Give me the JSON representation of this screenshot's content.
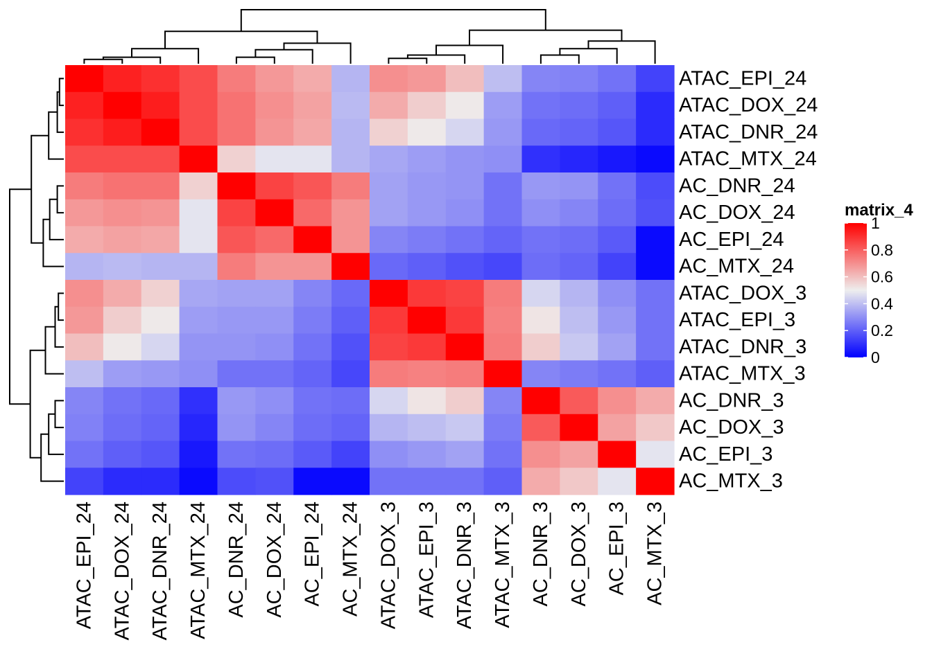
{
  "chart_data": {
    "type": "heatmap",
    "title": "",
    "xlabel": "",
    "ylabel": "",
    "rows": [
      "ATAC_EPI_24",
      "ATAC_DOX_24",
      "ATAC_DNR_24",
      "ATAC_MTX_24",
      "AC_DNR_24",
      "AC_DOX_24",
      "AC_EPI_24",
      "AC_MTX_24",
      "ATAC_DOX_3",
      "ATAC_EPI_3",
      "ATAC_DNR_3",
      "ATAC_MTX_3",
      "AC_DNR_3",
      "AC_DOX_3",
      "AC_EPI_3",
      "AC_MTX_3"
    ],
    "columns": [
      "ATAC_EPI_24",
      "ATAC_DOX_24",
      "ATAC_DNR_24",
      "ATAC_MTX_24",
      "AC_DNR_24",
      "AC_DOX_24",
      "AC_EPI_24",
      "AC_MTX_24",
      "ATAC_DOX_3",
      "ATAC_EPI_3",
      "ATAC_DNR_3",
      "ATAC_MTX_3",
      "AC_DNR_3",
      "AC_DOX_3",
      "AC_EPI_3",
      "AC_MTX_3"
    ],
    "values": [
      [
        1.0,
        0.93,
        0.9,
        0.84,
        0.74,
        0.68,
        0.64,
        0.38,
        0.7,
        0.68,
        0.6,
        0.4,
        0.28,
        0.27,
        0.24,
        0.14
      ],
      [
        0.93,
        1.0,
        0.94,
        0.84,
        0.76,
        0.7,
        0.66,
        0.39,
        0.64,
        0.57,
        0.51,
        0.33,
        0.24,
        0.23,
        0.2,
        0.09
      ],
      [
        0.9,
        0.94,
        1.0,
        0.84,
        0.76,
        0.69,
        0.65,
        0.38,
        0.56,
        0.51,
        0.45,
        0.32,
        0.22,
        0.21,
        0.18,
        0.09
      ],
      [
        0.84,
        0.84,
        0.84,
        1.0,
        0.56,
        0.48,
        0.48,
        0.38,
        0.35,
        0.33,
        0.31,
        0.3,
        0.1,
        0.08,
        0.05,
        0.02
      ],
      [
        0.74,
        0.76,
        0.76,
        0.56,
        1.0,
        0.86,
        0.82,
        0.74,
        0.34,
        0.32,
        0.31,
        0.24,
        0.32,
        0.31,
        0.24,
        0.16
      ],
      [
        0.68,
        0.7,
        0.69,
        0.48,
        0.86,
        1.0,
        0.78,
        0.69,
        0.34,
        0.32,
        0.3,
        0.24,
        0.3,
        0.28,
        0.23,
        0.17
      ],
      [
        0.64,
        0.66,
        0.65,
        0.48,
        0.82,
        0.78,
        1.0,
        0.69,
        0.28,
        0.26,
        0.24,
        0.21,
        0.24,
        0.23,
        0.19,
        0.02
      ],
      [
        0.38,
        0.39,
        0.38,
        0.38,
        0.74,
        0.69,
        0.69,
        1.0,
        0.22,
        0.2,
        0.17,
        0.15,
        0.23,
        0.21,
        0.14,
        0.02
      ],
      [
        0.7,
        0.64,
        0.56,
        0.35,
        0.34,
        0.34,
        0.28,
        0.22,
        1.0,
        0.88,
        0.86,
        0.74,
        0.45,
        0.38,
        0.3,
        0.24
      ],
      [
        0.68,
        0.57,
        0.51,
        0.33,
        0.32,
        0.32,
        0.26,
        0.2,
        0.88,
        1.0,
        0.88,
        0.73,
        0.52,
        0.4,
        0.32,
        0.24
      ],
      [
        0.6,
        0.51,
        0.45,
        0.31,
        0.31,
        0.3,
        0.24,
        0.17,
        0.86,
        0.88,
        1.0,
        0.74,
        0.57,
        0.42,
        0.34,
        0.24
      ],
      [
        0.4,
        0.33,
        0.32,
        0.3,
        0.24,
        0.24,
        0.21,
        0.15,
        0.74,
        0.73,
        0.74,
        1.0,
        0.28,
        0.26,
        0.24,
        0.2
      ],
      [
        0.28,
        0.24,
        0.22,
        0.1,
        0.32,
        0.3,
        0.24,
        0.23,
        0.45,
        0.52,
        0.57,
        0.28,
        1.0,
        0.81,
        0.7,
        0.64
      ],
      [
        0.27,
        0.23,
        0.21,
        0.08,
        0.31,
        0.28,
        0.23,
        0.21,
        0.38,
        0.4,
        0.42,
        0.26,
        0.81,
        1.0,
        0.66,
        0.58
      ],
      [
        0.24,
        0.2,
        0.18,
        0.05,
        0.24,
        0.23,
        0.19,
        0.14,
        0.3,
        0.32,
        0.34,
        0.24,
        0.7,
        0.66,
        1.0,
        0.48
      ],
      [
        0.14,
        0.09,
        0.09,
        0.02,
        0.16,
        0.17,
        0.02,
        0.02,
        0.24,
        0.24,
        0.24,
        0.2,
        0.64,
        0.58,
        0.48,
        1.0
      ]
    ],
    "color_scale": {
      "stops": [
        {
          "value": 0,
          "color": "#0000ff"
        },
        {
          "value": 0.5,
          "color": "#eeeeee"
        },
        {
          "value": 1,
          "color": "#ff0000"
        }
      ]
    },
    "legend": {
      "title": "matrix_4",
      "ticks": [
        "0",
        "0.2",
        "0.4",
        "0.6",
        "0.8",
        "1"
      ],
      "placement": "right"
    },
    "dendrograms": "rows-left, columns-top"
  }
}
